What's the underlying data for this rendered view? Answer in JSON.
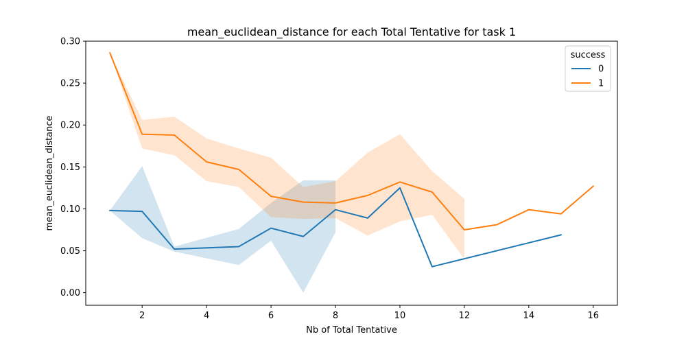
{
  "chart_data": {
    "type": "line",
    "title": "mean_euclidean_distance for each Total Tentative for task 1",
    "xlabel": "Nb of Total Tentative",
    "ylabel": "mean_euclidean_distance",
    "xlim": [
      0.25,
      16.75
    ],
    "ylim": [
      -0.015,
      0.3
    ],
    "xticks": [
      2,
      4,
      6,
      8,
      10,
      12,
      14,
      16
    ],
    "xtick_labels": [
      "2",
      "4",
      "6",
      "8",
      "10",
      "12",
      "14",
      "16"
    ],
    "yticks": [
      0.0,
      0.05,
      0.1,
      0.15,
      0.2,
      0.25,
      0.3
    ],
    "ytick_labels": [
      "0.00",
      "0.05",
      "0.10",
      "0.15",
      "0.20",
      "0.25",
      "0.30"
    ],
    "grid": false,
    "legend": {
      "title": "success",
      "placement": "top-right"
    },
    "series": [
      {
        "name": "0",
        "color": "#1f77b4",
        "x": [
          1,
          2,
          3,
          5,
          6,
          7,
          8,
          9,
          10,
          11,
          15
        ],
        "y": [
          0.098,
          0.097,
          0.052,
          0.055,
          0.077,
          0.067,
          0.099,
          0.089,
          0.125,
          0.031,
          0.069
        ],
        "ci_low": [
          0.098,
          0.065,
          0.049,
          0.033,
          0.062,
          0.0,
          0.072,
          null,
          null,
          null,
          null
        ],
        "ci_high": [
          0.098,
          0.151,
          0.055,
          0.076,
          0.107,
          0.134,
          0.134,
          null,
          null,
          null,
          null
        ]
      },
      {
        "name": "1",
        "color": "#ff7f0e",
        "x": [
          1,
          2,
          3,
          4,
          5,
          6,
          7,
          8,
          9,
          10,
          11,
          12,
          13,
          14,
          15,
          16
        ],
        "y": [
          0.286,
          0.189,
          0.188,
          0.156,
          0.147,
          0.115,
          0.108,
          0.107,
          0.116,
          0.132,
          0.12,
          0.075,
          0.081,
          0.099,
          0.094,
          0.127
        ],
        "ci_low": [
          0.286,
          0.172,
          0.164,
          0.133,
          0.126,
          0.09,
          0.088,
          0.089,
          0.068,
          0.085,
          0.093,
          0.04,
          null,
          null,
          null,
          null
        ],
        "ci_high": [
          0.286,
          0.206,
          0.21,
          0.184,
          0.172,
          0.161,
          0.126,
          0.133,
          0.167,
          0.189,
          0.145,
          0.112,
          null,
          null,
          null,
          null
        ]
      }
    ]
  }
}
